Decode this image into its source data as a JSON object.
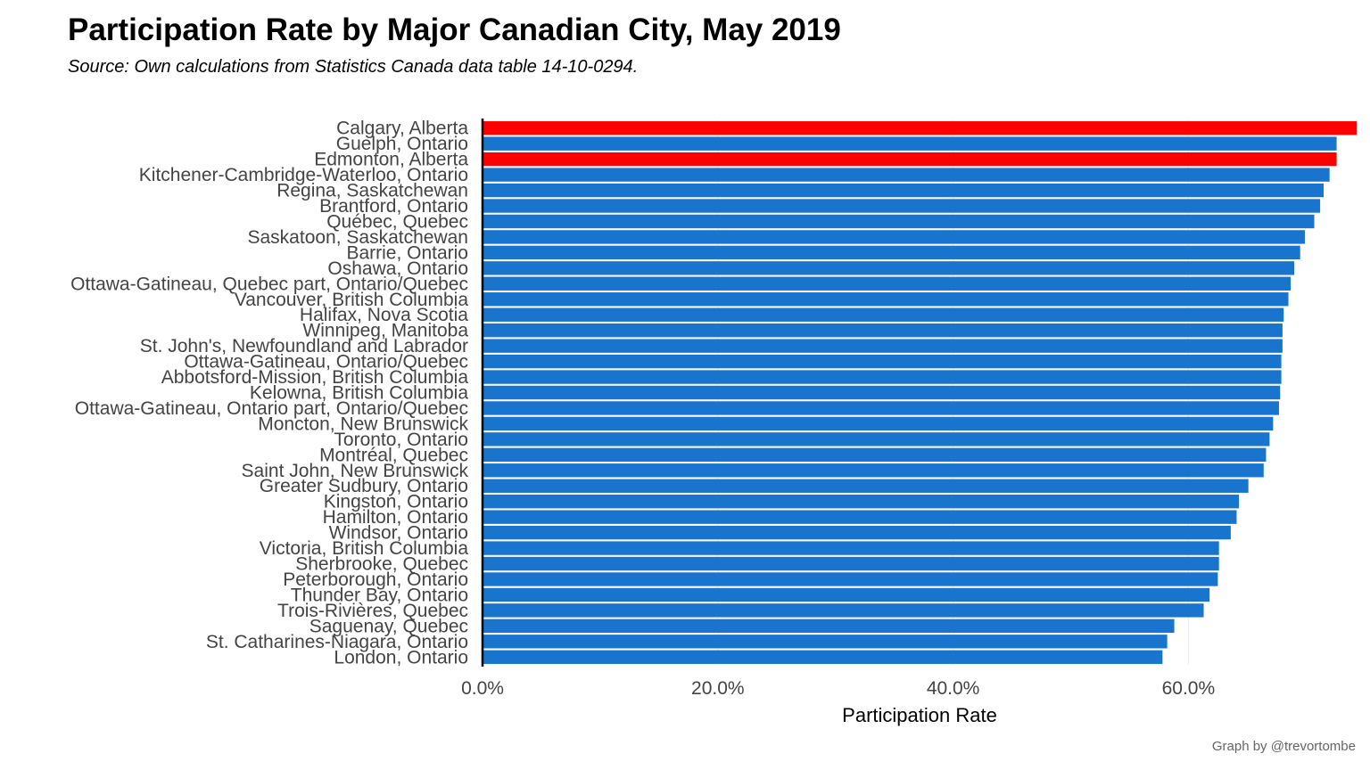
{
  "header": {
    "title": "Participation Rate by Major Canadian City, May 2019",
    "subtitle": "Source: Own calculations from Statistics Canada data table 14-10-0294.",
    "credit": "Graph by @trevortombe"
  },
  "chart_data": {
    "type": "bar",
    "orientation": "horizontal",
    "title": "Participation Rate by Major Canadian City, May 2019",
    "xlabel": "Participation Rate",
    "ylabel": "",
    "xlim": [
      0,
      74.3
    ],
    "x_ticks": [
      0,
      20,
      40,
      60
    ],
    "x_tick_labels": [
      "0.0%",
      "20.0%",
      "40.0%",
      "60.0%"
    ],
    "grid": "vertical major gridlines, very light",
    "colors": {
      "default": "#1874CD",
      "highlight": "#FF0000",
      "axis": "#000000"
    },
    "categories": [
      "Calgary, Alberta",
      "Guelph, Ontario",
      "Edmonton, Alberta",
      "Kitchener-Cambridge-Waterloo, Ontario",
      "Regina, Saskatchewan",
      "Brantford, Ontario",
      "Québec, Quebec",
      "Saskatoon, Saskatchewan",
      "Barrie, Ontario",
      "Oshawa, Ontario",
      "Ottawa-Gatineau, Quebec part, Ontario/Quebec",
      "Vancouver, British Columbia",
      "Halifax, Nova Scotia",
      "Winnipeg, Manitoba",
      "St. John's, Newfoundland and Labrador",
      "Ottawa-Gatineau, Ontario/Quebec",
      "Abbotsford-Mission, British Columbia",
      "Kelowna, British Columbia",
      "Ottawa-Gatineau, Ontario part, Ontario/Quebec",
      "Moncton, New Brunswick",
      "Toronto, Ontario",
      "Montréal, Quebec",
      "Saint John, New Brunswick",
      "Greater Sudbury, Ontario",
      "Kingston, Ontario",
      "Hamilton, Ontario",
      "Windsor, Ontario",
      "Victoria, British Columbia",
      "Sherbrooke, Quebec",
      "Peterborough, Ontario",
      "Thunder Bay, Ontario",
      "Trois-Rivières, Quebec",
      "Saguenay, Quebec",
      "St. Catharines-Niagara, Ontario",
      "London, Ontario"
    ],
    "values": [
      74.3,
      72.6,
      72.6,
      72.0,
      71.5,
      71.2,
      70.7,
      69.9,
      69.5,
      69.0,
      68.7,
      68.5,
      68.1,
      68.0,
      68.0,
      67.9,
      67.9,
      67.8,
      67.7,
      67.2,
      66.9,
      66.6,
      66.4,
      65.1,
      64.3,
      64.1,
      63.6,
      62.6,
      62.6,
      62.5,
      61.8,
      61.3,
      58.8,
      58.2,
      57.8
    ],
    "highlight": [
      "Calgary, Alberta",
      "Edmonton, Alberta"
    ]
  }
}
